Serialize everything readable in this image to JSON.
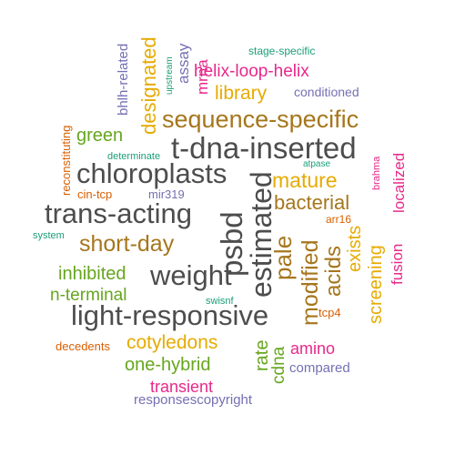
{
  "palette": {
    "dark_gray": "#4d4d4d",
    "brown": "#a6761d",
    "gold": "#e6ab02",
    "green": "#66a61e",
    "magenta": "#e7298a",
    "purple": "#7570b3",
    "orange": "#d95f02",
    "teal": "#1b9e77"
  },
  "words": [
    {
      "text": "t-dna-inserted",
      "color": "dark_gray"
    },
    {
      "text": "chloroplasts",
      "color": "dark_gray"
    },
    {
      "text": "trans-acting",
      "color": "dark_gray"
    },
    {
      "text": "light-responsive",
      "color": "dark_gray"
    },
    {
      "text": "weight",
      "color": "dark_gray"
    },
    {
      "text": "psbd",
      "color": "dark_gray"
    },
    {
      "text": "estimated",
      "color": "dark_gray"
    },
    {
      "text": "sequence-specific",
      "color": "brown"
    },
    {
      "text": "bacterial",
      "color": "brown"
    },
    {
      "text": "short-day",
      "color": "brown"
    },
    {
      "text": "pale",
      "color": "brown"
    },
    {
      "text": "modified",
      "color": "brown"
    },
    {
      "text": "acids",
      "color": "brown"
    },
    {
      "text": "mature",
      "color": "gold"
    },
    {
      "text": "library",
      "color": "gold"
    },
    {
      "text": "designated",
      "color": "gold"
    },
    {
      "text": "cotyledons",
      "color": "gold"
    },
    {
      "text": "exists",
      "color": "gold"
    },
    {
      "text": "screening",
      "color": "gold"
    },
    {
      "text": "inhibited",
      "color": "green"
    },
    {
      "text": "n-terminal",
      "color": "green"
    },
    {
      "text": "green",
      "color": "green"
    },
    {
      "text": "one-hybrid",
      "color": "green"
    },
    {
      "text": "rate",
      "color": "green"
    },
    {
      "text": "cdna",
      "color": "green"
    },
    {
      "text": "helix-loop-helix",
      "color": "magenta"
    },
    {
      "text": "localized",
      "color": "magenta"
    },
    {
      "text": "fusion",
      "color": "magenta"
    },
    {
      "text": "amino",
      "color": "magenta"
    },
    {
      "text": "transient",
      "color": "magenta"
    },
    {
      "text": "mrna",
      "color": "magenta"
    },
    {
      "text": "brahma",
      "color": "magenta"
    },
    {
      "text": "assay",
      "color": "purple"
    },
    {
      "text": "bhlh-related",
      "color": "purple"
    },
    {
      "text": "conditioned",
      "color": "purple"
    },
    {
      "text": "mir319",
      "color": "purple"
    },
    {
      "text": "compared",
      "color": "purple"
    },
    {
      "text": "responsescopyright",
      "color": "purple"
    },
    {
      "text": "reconstituting",
      "color": "orange"
    },
    {
      "text": "cin-tcp",
      "color": "orange"
    },
    {
      "text": "arr16",
      "color": "orange"
    },
    {
      "text": "tcp4",
      "color": "orange"
    },
    {
      "text": "decedents",
      "color": "orange"
    },
    {
      "text": "stage-specific",
      "color": "teal"
    },
    {
      "text": "upstream",
      "color": "teal"
    },
    {
      "text": "determinate",
      "color": "teal"
    },
    {
      "text": "atpase",
      "color": "teal"
    },
    {
      "text": "system",
      "color": "teal"
    },
    {
      "text": "swisnf",
      "color": "teal"
    }
  ]
}
